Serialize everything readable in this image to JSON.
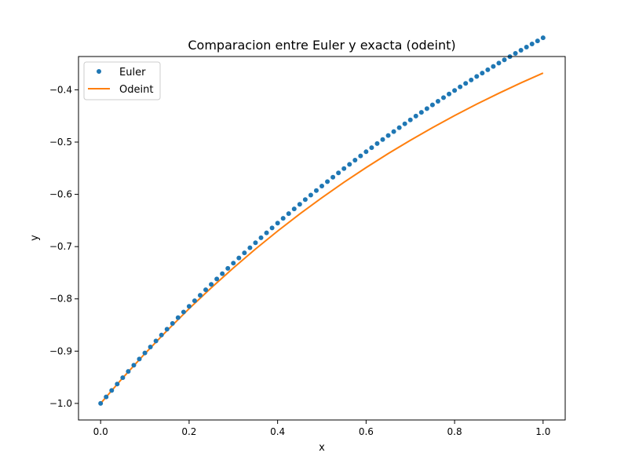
{
  "chart_data": {
    "type": "line",
    "title": "Comparacion entre Euler y exacta (odeint)",
    "xlabel": "x",
    "ylabel": "y",
    "xlim": [
      -0.05,
      1.05
    ],
    "ylim": [
      -1.0317,
      -0.3363
    ],
    "xticks": [
      {
        "value": 0.0,
        "label": "0.0"
      },
      {
        "value": 0.2,
        "label": "0.2"
      },
      {
        "value": 0.4,
        "label": "0.4"
      },
      {
        "value": 0.6,
        "label": "0.6"
      },
      {
        "value": 0.8,
        "label": "0.8"
      },
      {
        "value": 1.0,
        "label": "1.0"
      }
    ],
    "yticks": [
      {
        "value": -1.0,
        "label": "−1.0"
      },
      {
        "value": -0.9,
        "label": "−0.9"
      },
      {
        "value": -0.8,
        "label": "−0.8"
      },
      {
        "value": -0.7,
        "label": "−0.7"
      },
      {
        "value": -0.6,
        "label": "−0.6"
      },
      {
        "value": -0.5,
        "label": "−0.5"
      },
      {
        "value": -0.4,
        "label": "−0.4"
      }
    ],
    "grid": false,
    "legend_position": "top-left",
    "series": [
      {
        "name": "Euler",
        "style": "markers",
        "color": "#1f77b4",
        "x": [
          0,
          0.0125,
          0.025,
          0.0375,
          0.05,
          0.0625,
          0.075,
          0.0875,
          0.1,
          0.1125,
          0.125,
          0.1375,
          0.15,
          0.1625,
          0.175,
          0.1875,
          0.2,
          0.2125,
          0.225,
          0.2375,
          0.25,
          0.2625,
          0.275,
          0.2875,
          0.3,
          0.3125,
          0.325,
          0.3375,
          0.35,
          0.3625,
          0.375,
          0.3875,
          0.4,
          0.4125,
          0.425,
          0.4375,
          0.45,
          0.4625,
          0.475,
          0.4875,
          0.5,
          0.5125,
          0.525,
          0.5375,
          0.55,
          0.5625,
          0.575,
          0.5875,
          0.6,
          0.6125,
          0.625,
          0.6375,
          0.65,
          0.6625,
          0.675,
          0.6875,
          0.7,
          0.7125,
          0.725,
          0.7375,
          0.75,
          0.7625,
          0.775,
          0.7875,
          0.8,
          0.8125,
          0.825,
          0.8375,
          0.85,
          0.8625,
          0.875,
          0.8875,
          0.9,
          0.9125,
          0.925,
          0.9375,
          0.95,
          0.9625,
          0.975,
          0.9875,
          1.0
        ],
        "y": [
          -1.0,
          -0.9875,
          -0.9752,
          -0.9629,
          -0.9508,
          -0.9388,
          -0.9269,
          -0.9152,
          -0.9035,
          -0.892,
          -0.8806,
          -0.8692,
          -0.858,
          -0.8469,
          -0.8359,
          -0.8251,
          -0.8143,
          -0.8036,
          -0.793,
          -0.7825,
          -0.7722,
          -0.7619,
          -0.7517,
          -0.7416,
          -0.7316,
          -0.7217,
          -0.7119,
          -0.7022,
          -0.6926,
          -0.6831,
          -0.6737,
          -0.6643,
          -0.6551,
          -0.6459,
          -0.6368,
          -0.6279,
          -0.619,
          -0.6101,
          -0.6014,
          -0.5928,
          -0.5842,
          -0.5757,
          -0.5673,
          -0.559,
          -0.5507,
          -0.5426,
          -0.5345,
          -0.5265,
          -0.5185,
          -0.5107,
          -0.5029,
          -0.4952,
          -0.4875,
          -0.4799,
          -0.4724,
          -0.465,
          -0.4576,
          -0.4503,
          -0.4431,
          -0.436,
          -0.4289,
          -0.4219,
          -0.4149,
          -0.408,
          -0.4012,
          -0.3944,
          -0.3877,
          -0.3811,
          -0.3745,
          -0.368,
          -0.3616,
          -0.3552,
          -0.3489,
          -0.3427,
          -0.3365,
          -0.3303,
          -0.3243,
          -0.3182,
          -0.3123,
          -0.3064,
          -0.3005
        ]
      },
      {
        "name": "Odeint",
        "style": "line",
        "color": "#ff7f0e",
        "x": [
          0,
          0.05,
          0.1,
          0.15,
          0.2,
          0.25,
          0.3,
          0.35,
          0.4,
          0.45,
          0.5,
          0.55,
          0.6,
          0.65,
          0.7,
          0.75,
          0.8,
          0.85,
          0.9,
          0.95,
          1.0
        ],
        "y": [
          -1.0,
          -0.9512,
          -0.9048,
          -0.8607,
          -0.8187,
          -0.7788,
          -0.7408,
          -0.7047,
          -0.6703,
          -0.6376,
          -0.6065,
          -0.5769,
          -0.5488,
          -0.522,
          -0.4966,
          -0.4724,
          -0.4493,
          -0.4274,
          -0.4066,
          -0.3867,
          -0.3679
        ]
      }
    ]
  }
}
